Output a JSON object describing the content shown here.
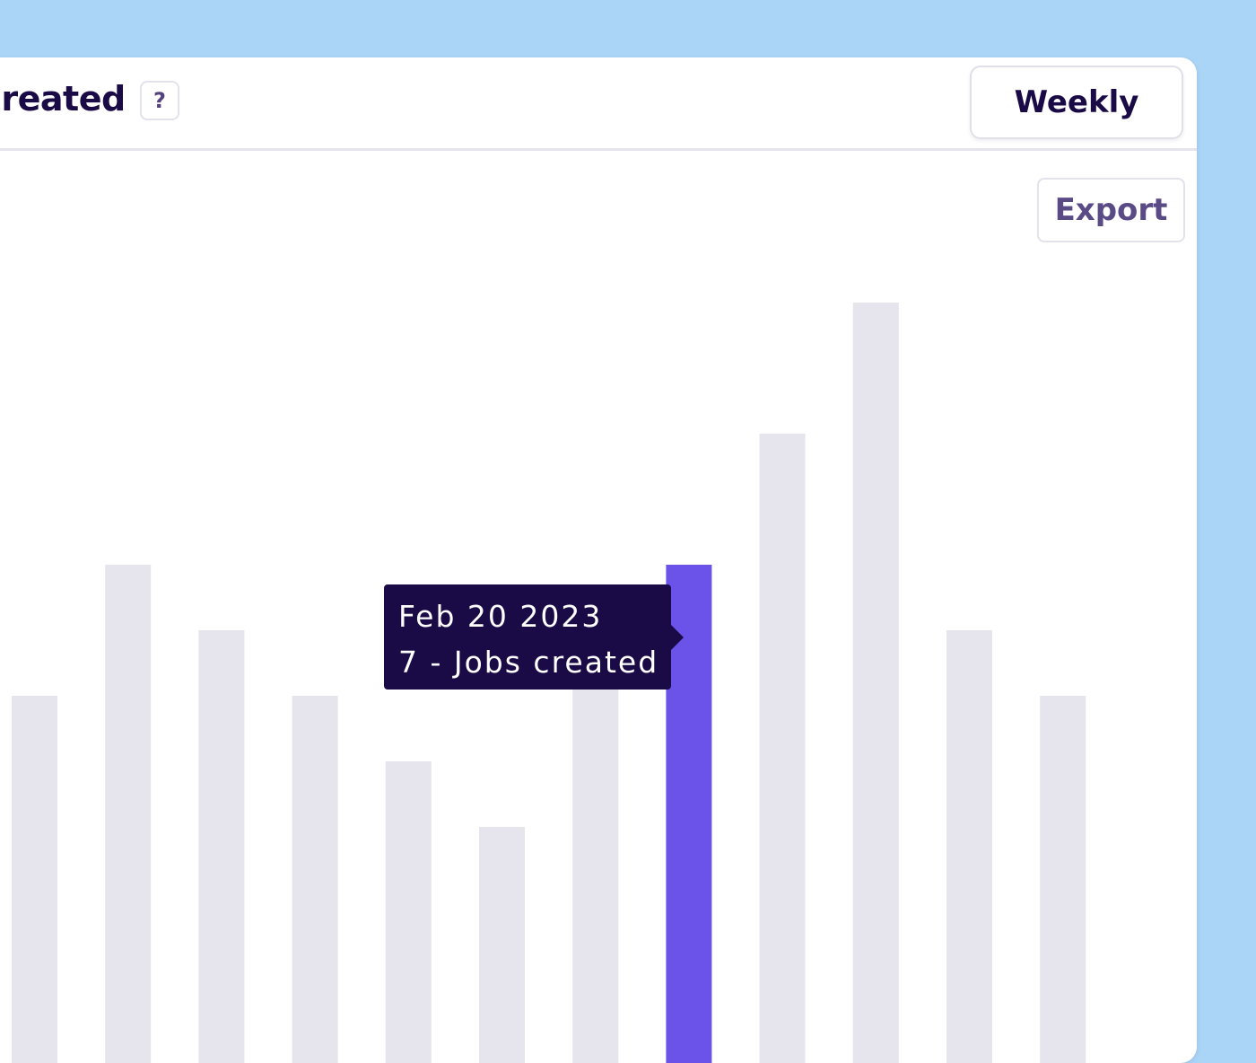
{
  "header": {
    "title": "Created",
    "help_label": "?",
    "period_button": "Weekly"
  },
  "toolbar": {
    "export_label": "Export"
  },
  "tooltip": {
    "date": "Feb 20 2023",
    "value_text": "7 - Jobs created"
  },
  "colors": {
    "bar": "#e6e4ec",
    "bar_highlight": "#6b52e8",
    "tooltip_bg": "#1a0a45",
    "background": "#abd5f7"
  },
  "chart_data": {
    "type": "bar",
    "title": "",
    "values": [
      5,
      7,
      6,
      5,
      4,
      3,
      6,
      7,
      9,
      11,
      6,
      5
    ],
    "highlight_index": 7,
    "highlight_label": "Feb 20 2023",
    "series_name": "Jobs created",
    "grid": false
  }
}
